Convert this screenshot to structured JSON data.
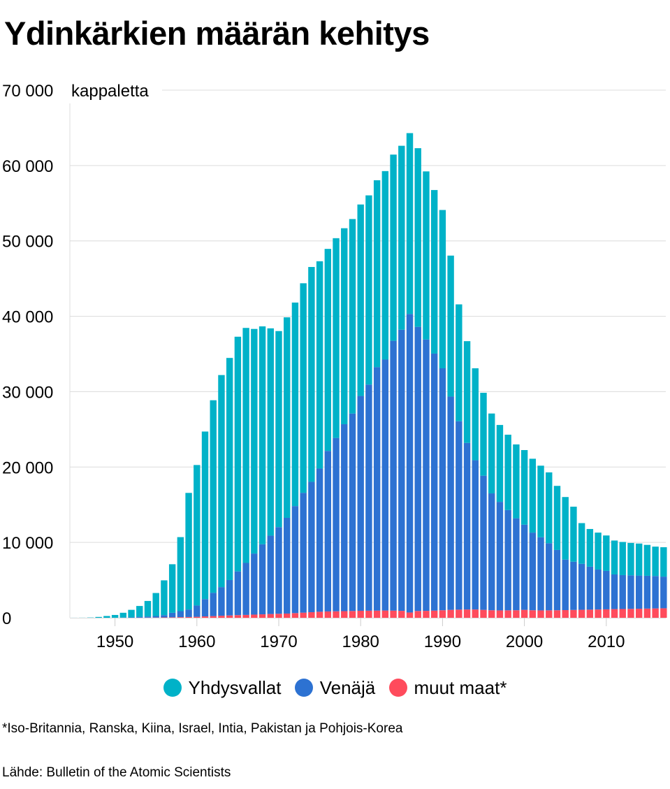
{
  "title": "Ydinkärkien määrän kehitys",
  "legend": [
    {
      "label": "Yhdysvallat",
      "color": "#00b2c8"
    },
    {
      "label": "Venäjä",
      "color": "#2d72d2"
    },
    {
      "label": "muut maat*",
      "color": "#ff4b5c"
    }
  ],
  "footnote": "*Iso-Britannia, Ranska, Kiina, Israel, Intia, Pakistan ja Pohjois-Korea",
  "source": "Lähde: Bulletin of the Atomic Scientists",
  "chart_data": {
    "type": "bar",
    "stacked": true,
    "title": "Ydinkärkien määrän kehitys",
    "ylabel": "kappaletta",
    "xlabel": "",
    "ylim": [
      0,
      70000
    ],
    "yticks": [
      0,
      10000,
      20000,
      30000,
      40000,
      50000,
      60000,
      70000
    ],
    "ytick_labels": [
      "0",
      "10 000",
      "20 000",
      "30 000",
      "40 000",
      "50 000",
      "60 000",
      "70 000"
    ],
    "xticks": [
      1950,
      1960,
      1970,
      1980,
      1990,
      2000,
      2010
    ],
    "grid": true,
    "legend_position": "bottom",
    "categories": [
      1945,
      1946,
      1947,
      1948,
      1949,
      1950,
      1951,
      1952,
      1953,
      1954,
      1955,
      1956,
      1957,
      1958,
      1959,
      1960,
      1961,
      1962,
      1963,
      1964,
      1965,
      1966,
      1967,
      1968,
      1969,
      1970,
      1971,
      1972,
      1973,
      1974,
      1975,
      1976,
      1977,
      1978,
      1979,
      1980,
      1981,
      1982,
      1983,
      1984,
      1985,
      1986,
      1987,
      1988,
      1989,
      1990,
      1991,
      1992,
      1993,
      1994,
      1995,
      1996,
      1997,
      1998,
      1999,
      2000,
      2001,
      2002,
      2003,
      2004,
      2005,
      2006,
      2007,
      2008,
      2009,
      2010,
      2011,
      2012,
      2013,
      2014,
      2015,
      2016,
      2017
    ],
    "series": [
      {
        "name": "muut maat*",
        "color": "#ff4b5c",
        "values": [
          0,
          0,
          0,
          0,
          0,
          0,
          0,
          0,
          10,
          20,
          30,
          50,
          60,
          80,
          100,
          130,
          180,
          220,
          270,
          310,
          350,
          380,
          420,
          460,
          500,
          530,
          560,
          620,
          680,
          740,
          800,
          840,
          860,
          880,
          900,
          930,
          940,
          950,
          960,
          950,
          920,
          700,
          900,
          920,
          950,
          1000,
          1050,
          1080,
          1100,
          1100,
          1050,
          1000,
          980,
          990,
          1000,
          1050,
          1000,
          980,
          990,
          1000,
          1020,
          1040,
          1060,
          1080,
          1100,
          1120,
          1150,
          1160,
          1180,
          1200,
          1220,
          1240,
          1260
        ]
      },
      {
        "name": "Venäjä",
        "color": "#2d72d2",
        "values": [
          0,
          0,
          0,
          0,
          1,
          5,
          25,
          50,
          120,
          150,
          200,
          300,
          600,
          800,
          1000,
          1500,
          2300,
          3100,
          3800,
          4700,
          5800,
          6900,
          8100,
          9300,
          10400,
          11500,
          12700,
          14200,
          15900,
          17300,
          19000,
          21300,
          23000,
          24800,
          26200,
          28500,
          30000,
          32300,
          33300,
          35800,
          37300,
          39600,
          37700,
          36000,
          34100,
          32100,
          28300,
          25000,
          22100,
          19800,
          17800,
          15500,
          14400,
          13300,
          12200,
          11300,
          10300,
          9700,
          8900,
          8000,
          6700,
          6400,
          6100,
          5700,
          5300,
          5100,
          4600,
          4500,
          4450,
          4400,
          4350,
          4300,
          4200
        ]
      },
      {
        "name": "Yhdysvallat",
        "color": "#00b2c8",
        "values": [
          6,
          11,
          32,
          110,
          235,
          369,
          640,
          1005,
          1436,
          2063,
          3057,
          4618,
          6444,
          9822,
          15468,
          18638,
          22229,
          25540,
          28133,
          29463,
          31139,
          31175,
          29800,
          28900,
          27500,
          26008,
          26600,
          27000,
          27800,
          28500,
          27500,
          26800,
          26500,
          26000,
          25800,
          25400,
          25100,
          24800,
          25000,
          24700,
          24400,
          24000,
          23700,
          22300,
          21700,
          21000,
          18700,
          15500,
          13500,
          12200,
          11000,
          10600,
          10200,
          10000,
          9800,
          9900,
          9800,
          9500,
          9400,
          8500,
          8300,
          7300,
          5400,
          5000,
          4900,
          4700,
          4500,
          4400,
          4300,
          4250,
          4100,
          3900,
          3900
        ]
      }
    ]
  }
}
